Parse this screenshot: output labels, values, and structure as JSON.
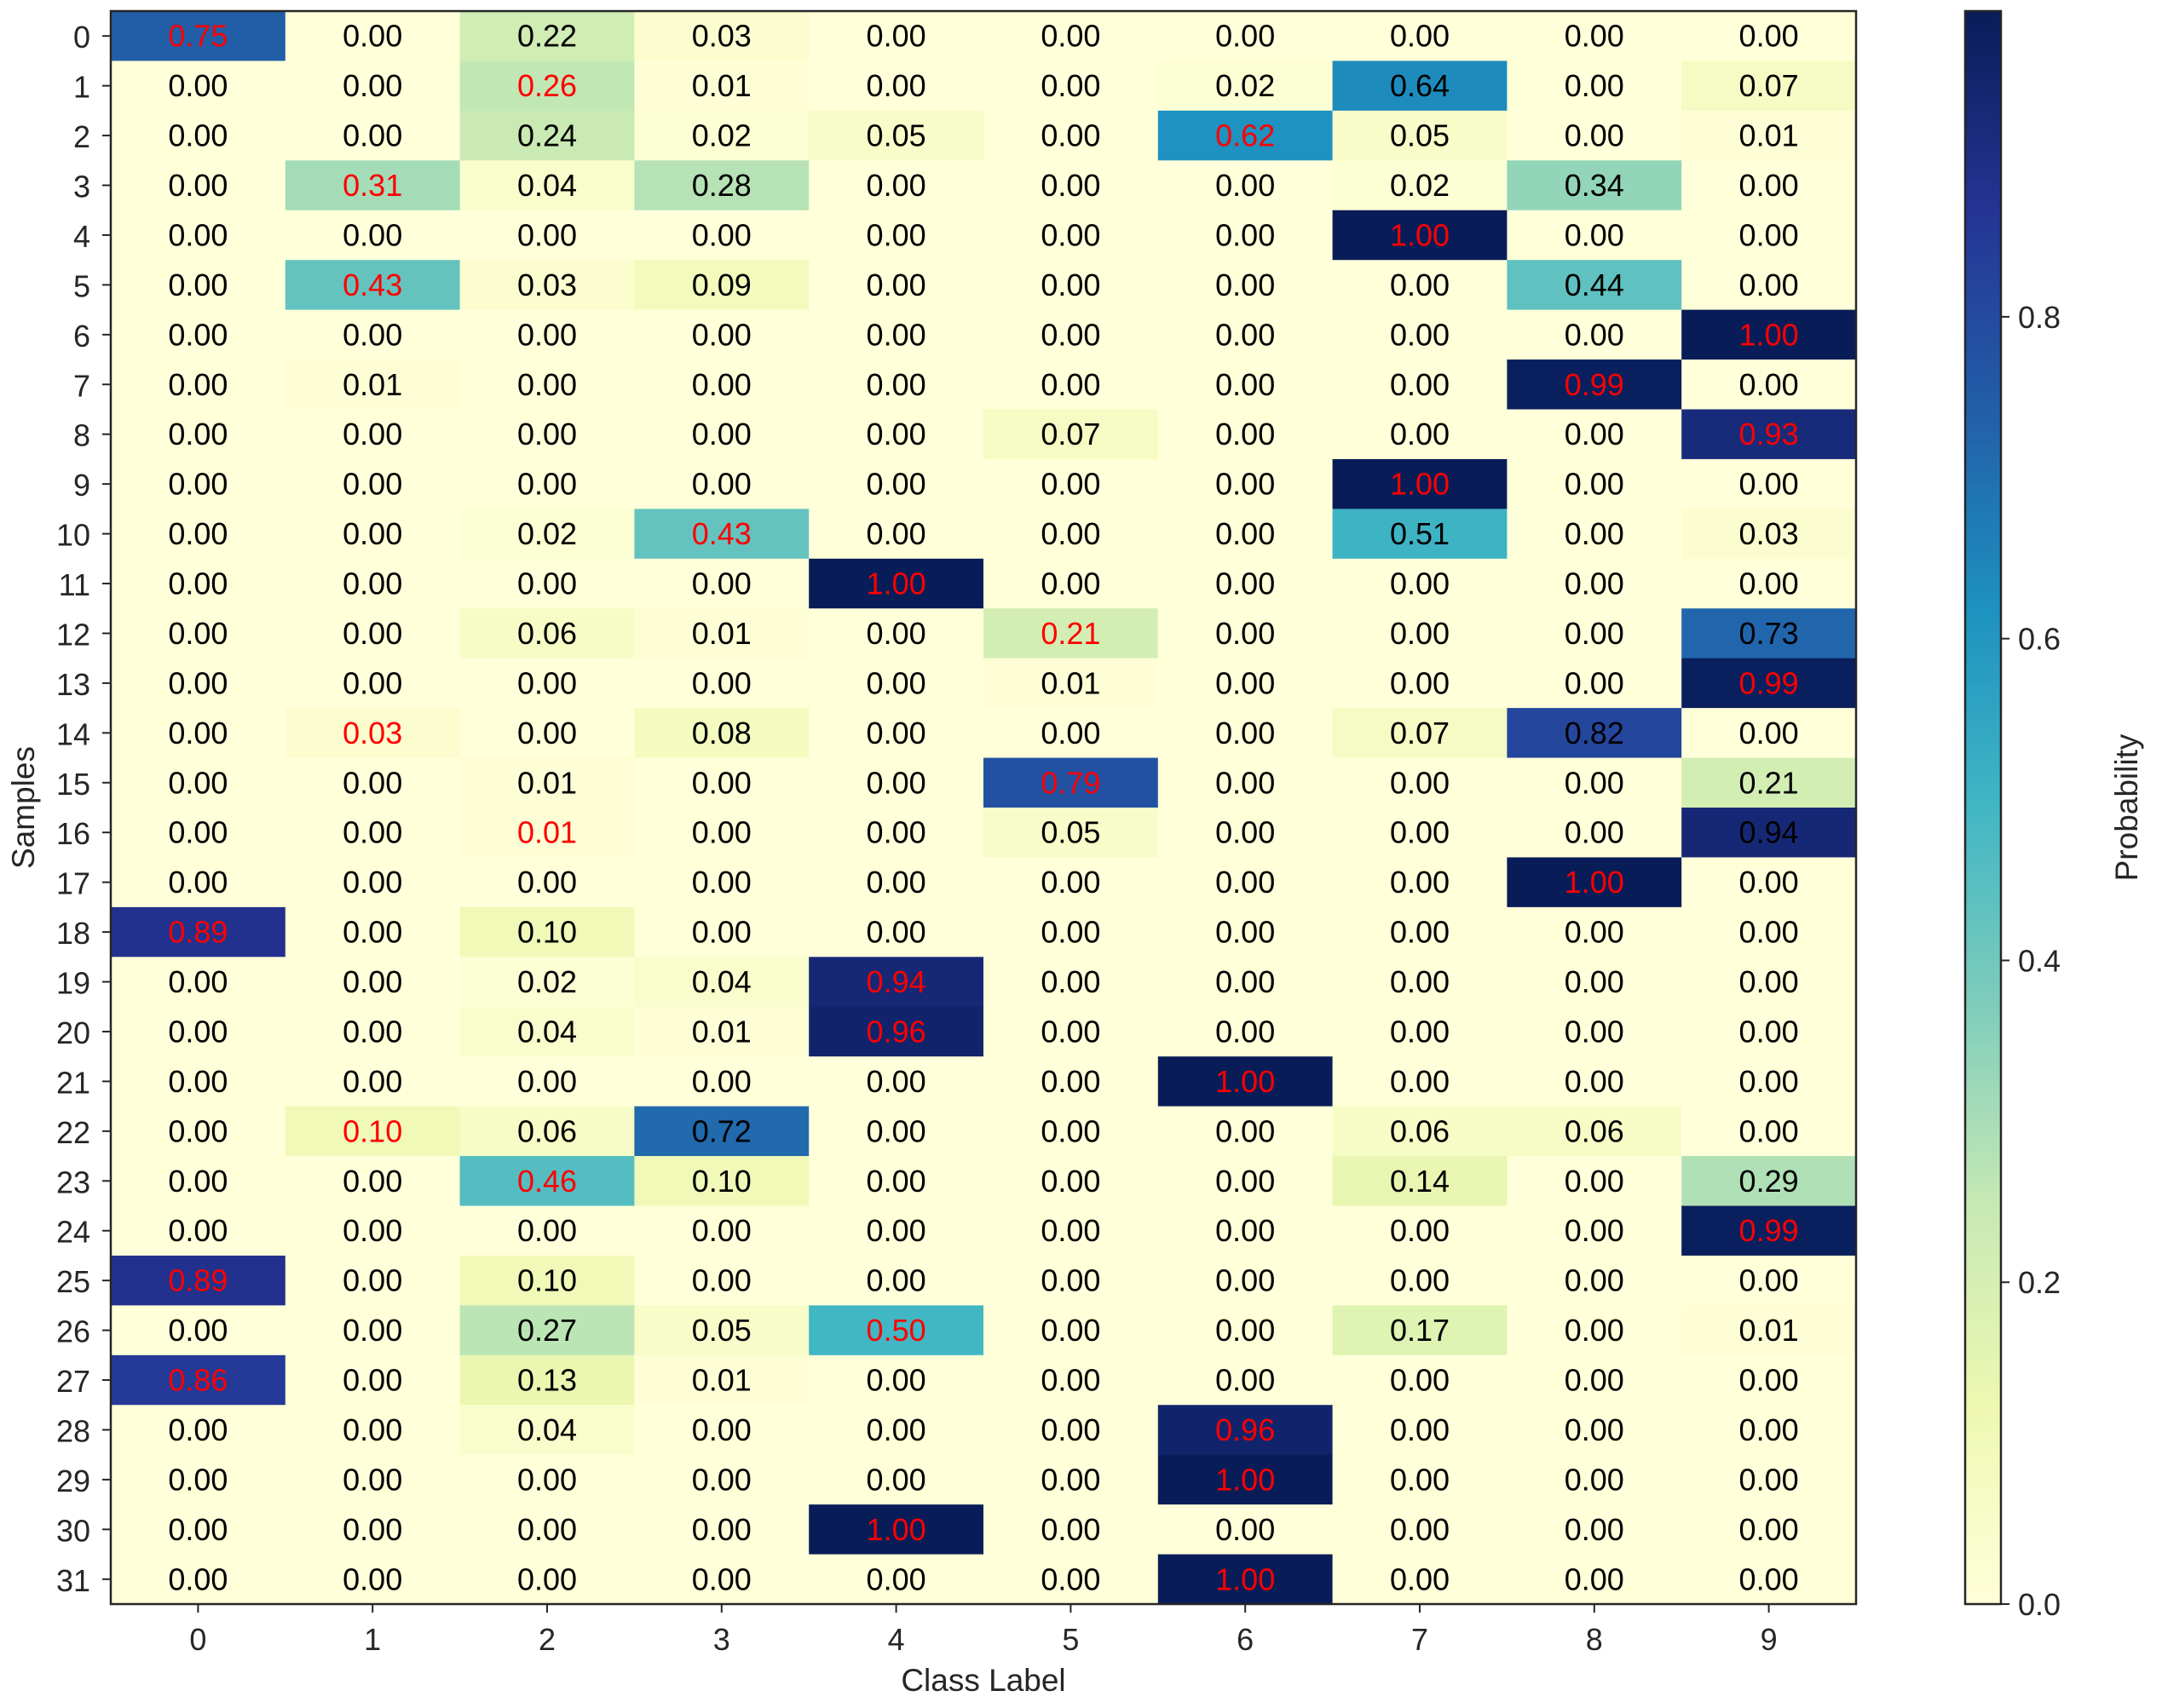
{
  "chart_data": {
    "type": "heatmap",
    "xlabel": "Class Label",
    "ylabel": "Samples",
    "colorbar_label": "Probability",
    "colormap": "YlGnBu",
    "vmin": 0.0,
    "vmax": 1.0,
    "x_tick_labels": [
      "0",
      "1",
      "2",
      "3",
      "4",
      "5",
      "6",
      "7",
      "8",
      "9"
    ],
    "y_tick_labels": [
      "0",
      "1",
      "2",
      "3",
      "4",
      "5",
      "6",
      "7",
      "8",
      "9",
      "10",
      "11",
      "12",
      "13",
      "14",
      "15",
      "16",
      "17",
      "18",
      "19",
      "20",
      "21",
      "22",
      "23",
      "24",
      "25",
      "26",
      "27",
      "28",
      "29",
      "30",
      "31"
    ],
    "colorbar_ticks": [
      {
        "value": 0.0,
        "label": "0.0"
      },
      {
        "value": 0.2,
        "label": "0.2"
      },
      {
        "value": 0.4,
        "label": "0.4"
      },
      {
        "value": 0.6,
        "label": "0.6"
      },
      {
        "value": 0.8,
        "label": "0.8"
      }
    ],
    "colorbar_max": 0.99,
    "label_color_default": "#000000",
    "label_color_true_class": "#ff0000",
    "values": [
      [
        0.75,
        0.0,
        0.22,
        0.03,
        0.0,
        0.0,
        0.0,
        0.0,
        0.0,
        0.0
      ],
      [
        0.0,
        0.0,
        0.26,
        0.01,
        0.0,
        0.0,
        0.02,
        0.64,
        0.0,
        0.07
      ],
      [
        0.0,
        0.0,
        0.24,
        0.02,
        0.05,
        0.0,
        0.62,
        0.05,
        0.0,
        0.01
      ],
      [
        0.0,
        0.31,
        0.04,
        0.28,
        0.0,
        0.0,
        0.0,
        0.02,
        0.34,
        0.0
      ],
      [
        0.0,
        0.0,
        0.0,
        0.0,
        0.0,
        0.0,
        0.0,
        1.0,
        0.0,
        0.0
      ],
      [
        0.0,
        0.43,
        0.03,
        0.09,
        0.0,
        0.0,
        0.0,
        0.0,
        0.44,
        0.0
      ],
      [
        0.0,
        0.0,
        0.0,
        0.0,
        0.0,
        0.0,
        0.0,
        0.0,
        0.0,
        1.0
      ],
      [
        0.0,
        0.01,
        0.0,
        0.0,
        0.0,
        0.0,
        0.0,
        0.0,
        0.99,
        0.0
      ],
      [
        0.0,
        0.0,
        0.0,
        0.0,
        0.0,
        0.07,
        0.0,
        0.0,
        0.0,
        0.93
      ],
      [
        0.0,
        0.0,
        0.0,
        0.0,
        0.0,
        0.0,
        0.0,
        1.0,
        0.0,
        0.0
      ],
      [
        0.0,
        0.0,
        0.02,
        0.43,
        0.0,
        0.0,
        0.0,
        0.51,
        0.0,
        0.03
      ],
      [
        0.0,
        0.0,
        0.0,
        0.0,
        1.0,
        0.0,
        0.0,
        0.0,
        0.0,
        0.0
      ],
      [
        0.0,
        0.0,
        0.06,
        0.01,
        0.0,
        0.21,
        0.0,
        0.0,
        0.0,
        0.73
      ],
      [
        0.0,
        0.0,
        0.0,
        0.0,
        0.0,
        0.01,
        0.0,
        0.0,
        0.0,
        0.99
      ],
      [
        0.0,
        0.03,
        0.0,
        0.08,
        0.0,
        0.0,
        0.0,
        0.07,
        0.82,
        0.0
      ],
      [
        0.0,
        0.0,
        0.01,
        0.0,
        0.0,
        0.79,
        0.0,
        0.0,
        0.0,
        0.21
      ],
      [
        0.0,
        0.0,
        0.01,
        0.0,
        0.0,
        0.05,
        0.0,
        0.0,
        0.0,
        0.94
      ],
      [
        0.0,
        0.0,
        0.0,
        0.0,
        0.0,
        0.0,
        0.0,
        0.0,
        1.0,
        0.0
      ],
      [
        0.89,
        0.0,
        0.1,
        0.0,
        0.0,
        0.0,
        0.0,
        0.0,
        0.0,
        0.0
      ],
      [
        0.0,
        0.0,
        0.02,
        0.04,
        0.94,
        0.0,
        0.0,
        0.0,
        0.0,
        0.0
      ],
      [
        0.0,
        0.0,
        0.04,
        0.01,
        0.96,
        0.0,
        0.0,
        0.0,
        0.0,
        0.0
      ],
      [
        0.0,
        0.0,
        0.0,
        0.0,
        0.0,
        0.0,
        1.0,
        0.0,
        0.0,
        0.0
      ],
      [
        0.0,
        0.1,
        0.06,
        0.72,
        0.0,
        0.0,
        0.0,
        0.06,
        0.06,
        0.0
      ],
      [
        0.0,
        0.0,
        0.46,
        0.1,
        0.0,
        0.0,
        0.0,
        0.14,
        0.0,
        0.29
      ],
      [
        0.0,
        0.0,
        0.0,
        0.0,
        0.0,
        0.0,
        0.0,
        0.0,
        0.0,
        0.99
      ],
      [
        0.89,
        0.0,
        0.1,
        0.0,
        0.0,
        0.0,
        0.0,
        0.0,
        0.0,
        0.0
      ],
      [
        0.0,
        0.0,
        0.27,
        0.05,
        0.5,
        0.0,
        0.0,
        0.17,
        0.0,
        0.01
      ],
      [
        0.86,
        0.0,
        0.13,
        0.01,
        0.0,
        0.0,
        0.0,
        0.0,
        0.0,
        0.0
      ],
      [
        0.0,
        0.0,
        0.04,
        0.0,
        0.0,
        0.0,
        0.96,
        0.0,
        0.0,
        0.0
      ],
      [
        0.0,
        0.0,
        0.0,
        0.0,
        0.0,
        0.0,
        1.0,
        0.0,
        0.0,
        0.0
      ],
      [
        0.0,
        0.0,
        0.0,
        0.0,
        1.0,
        0.0,
        0.0,
        0.0,
        0.0,
        0.0
      ],
      [
        0.0,
        0.0,
        0.0,
        0.0,
        0.0,
        0.0,
        1.0,
        0.0,
        0.0,
        0.0
      ]
    ],
    "true_class": [
      0,
      2,
      6,
      1,
      7,
      1,
      9,
      8,
      9,
      7,
      3,
      4,
      5,
      9,
      1,
      5,
      2,
      8,
      0,
      4,
      4,
      6,
      1,
      2,
      9,
      0,
      4,
      0,
      6,
      6,
      4,
      6
    ]
  }
}
